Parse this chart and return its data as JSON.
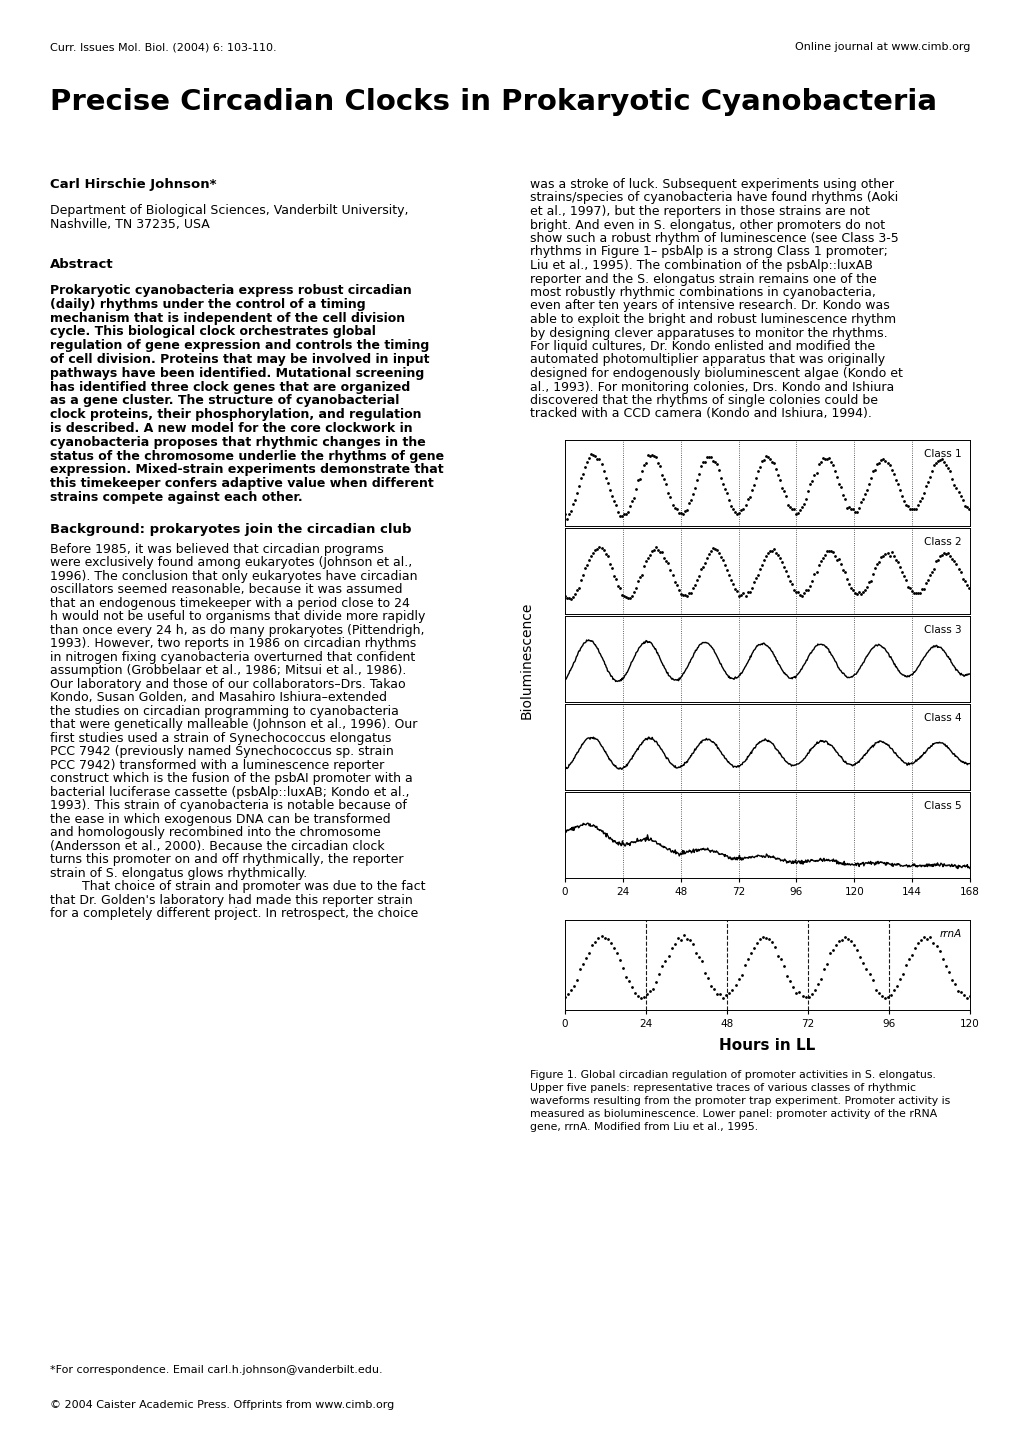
{
  "page_title": "Precise Circadian Clocks in Prokaryotic Cyanobacteria",
  "header_left": "Curr. Issues Mol. Biol. (2004) 6: 103-110.",
  "header_right": "Online journal at www.cimb.org",
  "author": "Carl Hirschie Johnson*",
  "affiliation1": "Department of Biological Sciences, Vanderbilt University,",
  "affiliation2": "Nashville, TN 37235, USA",
  "abstract_title": "Abstract",
  "abstract_lines": [
    "Prokaryotic cyanobacteria express robust circadian",
    "(daily) rhythms under the control of a timing",
    "mechanism that is independent of the cell division",
    "cycle. This biological clock orchestrates global",
    "regulation of gene expression and controls the timing",
    "of cell division. Proteins that may be involved in input",
    "pathways have been identified. Mutational screening",
    "has identified three clock genes that are organized",
    "as a gene cluster. The structure of cyanobacterial",
    "clock proteins, their phosphorylation, and regulation",
    "is described. A new model for the core clockwork in",
    "cyanobacteria proposes that rhythmic changes in the",
    "status of the chromosome underlie the rhythms of gene",
    "expression. Mixed-strain experiments demonstrate that",
    "this timekeeper confers adaptive value when different",
    "strains compete against each other."
  ],
  "background_title": "Background: prokaryotes join the circadian club",
  "background_lines": [
    "Before 1985, it was believed that circadian programs",
    "were exclusively found among eukaryotes (Johnson et al.,",
    "1996). The conclusion that only eukaryotes have circadian",
    "oscillators seemed reasonable, because it was assumed",
    "that an endogenous timekeeper with a period close to 24",
    "h would not be useful to organisms that divide more rapidly",
    "than once every 24 h, as do many prokaryotes (Pittendrigh,",
    "1993). However, two reports in 1986 on circadian rhythms",
    "in nitrogen fixing cyanobacteria overturned that confident",
    "assumption (Grobbelaar et al., 1986; Mitsui et al., 1986).",
    "Our laboratory and those of our collaborators–Drs. Takao",
    "Kondo, Susan Golden, and Masahiro Ishiura–extended",
    "the studies on circadian programming to cyanobacteria",
    "that were genetically malleable (Johnson et al., 1996). Our",
    "first studies used a strain of Synechococcus elongatus",
    "PCC 7942 (previously named Synechococcus sp. strain",
    "PCC 7942) transformed with a luminescence reporter",
    "construct which is the fusion of the psbAI promoter with a",
    "bacterial luciferase cassette (psbAlp::luxAB; Kondo et al.,",
    "1993). This strain of cyanobacteria is notable because of",
    "the ease in which exogenous DNA can be transformed",
    "and homologously recombined into the chromosome",
    "(Andersson et al., 2000). Because the circadian clock",
    "turns this promoter on and off rhythmically, the reporter",
    "strain of S. elongatus glows rhythmically.",
    "        That choice of strain and promoter was due to the fact",
    "that Dr. Golden's laboratory had made this reporter strain",
    "for a completely different project. In retrospect, the choice"
  ],
  "right_col_lines": [
    "was a stroke of luck. Subsequent experiments using other",
    "strains/species of cyanobacteria have found rhythms (Aoki",
    "et al., 1997), but the reporters in those strains are not",
    "bright. And even in S. elongatus, other promoters do not",
    "show such a robust rhythm of luminescence (see Class 3-5",
    "rhythms in Figure 1– psbAlp is a strong Class 1 promoter;",
    "Liu et al., 1995). The combination of the psbAlp::luxAB",
    "reporter and the S. elongatus strain remains one of the",
    "most robustly rhythmic combinations in cyanobacteria,",
    "even after ten years of intensive research. Dr. Kondo was",
    "able to exploit the bright and robust luminescence rhythm",
    "by designing clever apparatuses to monitor the rhythms.",
    "For liquid cultures, Dr. Kondo enlisted and modified the",
    "automated photomultiplier apparatus that was originally",
    "designed for endogenously bioluminescent algae (Kondo et",
    "al., 1993). For monitoring colonies, Drs. Kondo and Ishiura",
    "discovered that the rhythms of single colonies could be",
    "tracked with a CCD camera (Kondo and Ishiura, 1994)."
  ],
  "figure_caption_lines": [
    "Figure 1. Global circadian regulation of promoter activities in S. elongatus.",
    "Upper five panels: representative traces of various classes of rhythmic",
    "waveforms resulting from the promoter trap experiment. Promoter activity is",
    "measured as bioluminescence. Lower panel: promoter activity of the rRNA",
    "gene, rrnA. Modified from Liu et al., 1995."
  ],
  "ylabel": "Bioluminescence",
  "xlabel": "Hours in LL",
  "upper_xticks": [
    0,
    24,
    48,
    72,
    96,
    120,
    144,
    168
  ],
  "lower_xticks": [
    0,
    24,
    48,
    72,
    96,
    120
  ],
  "class_labels": [
    "Class 1",
    "Class 2",
    "Class 3",
    "Class 4",
    "Class 5"
  ],
  "rrna_label": "rrnA",
  "footnote": "*For correspondence. Email carl.h.johnson@vanderbilt.edu.",
  "copyright": "© 2004 Caister Academic Press. Offprints from www.cimb.org",
  "background_color": "#ffffff",
  "text_color": "#000000"
}
